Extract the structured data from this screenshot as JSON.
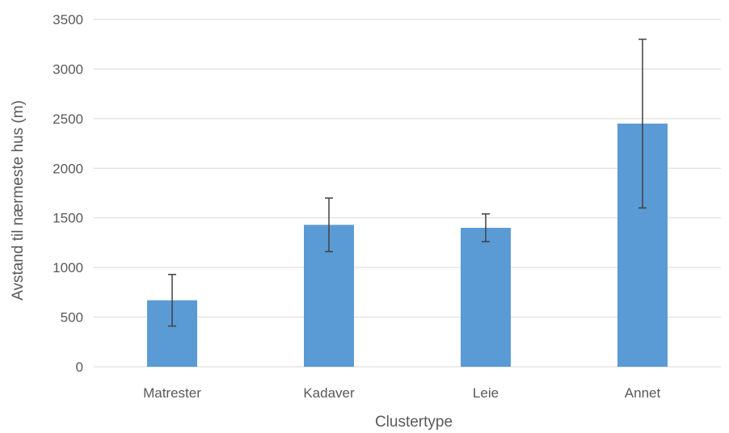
{
  "chart_data": {
    "type": "bar",
    "categories": [
      "Matrester",
      "Kadaver",
      "Leie",
      "Annet"
    ],
    "values": [
      670,
      1430,
      1400,
      2450
    ],
    "error_low": [
      410,
      1160,
      1260,
      1600
    ],
    "error_high": [
      930,
      1700,
      1540,
      3300
    ],
    "title": "",
    "xlabel": "Clustertype",
    "ylabel": "Avstand til nærmeste hus (m)",
    "ylim": [
      0,
      3500
    ],
    "yticks": [
      0,
      500,
      1000,
      1500,
      2000,
      2500,
      3000,
      3500
    ],
    "grid": true,
    "bar_color": "#5b9bd5",
    "legend": "none"
  }
}
